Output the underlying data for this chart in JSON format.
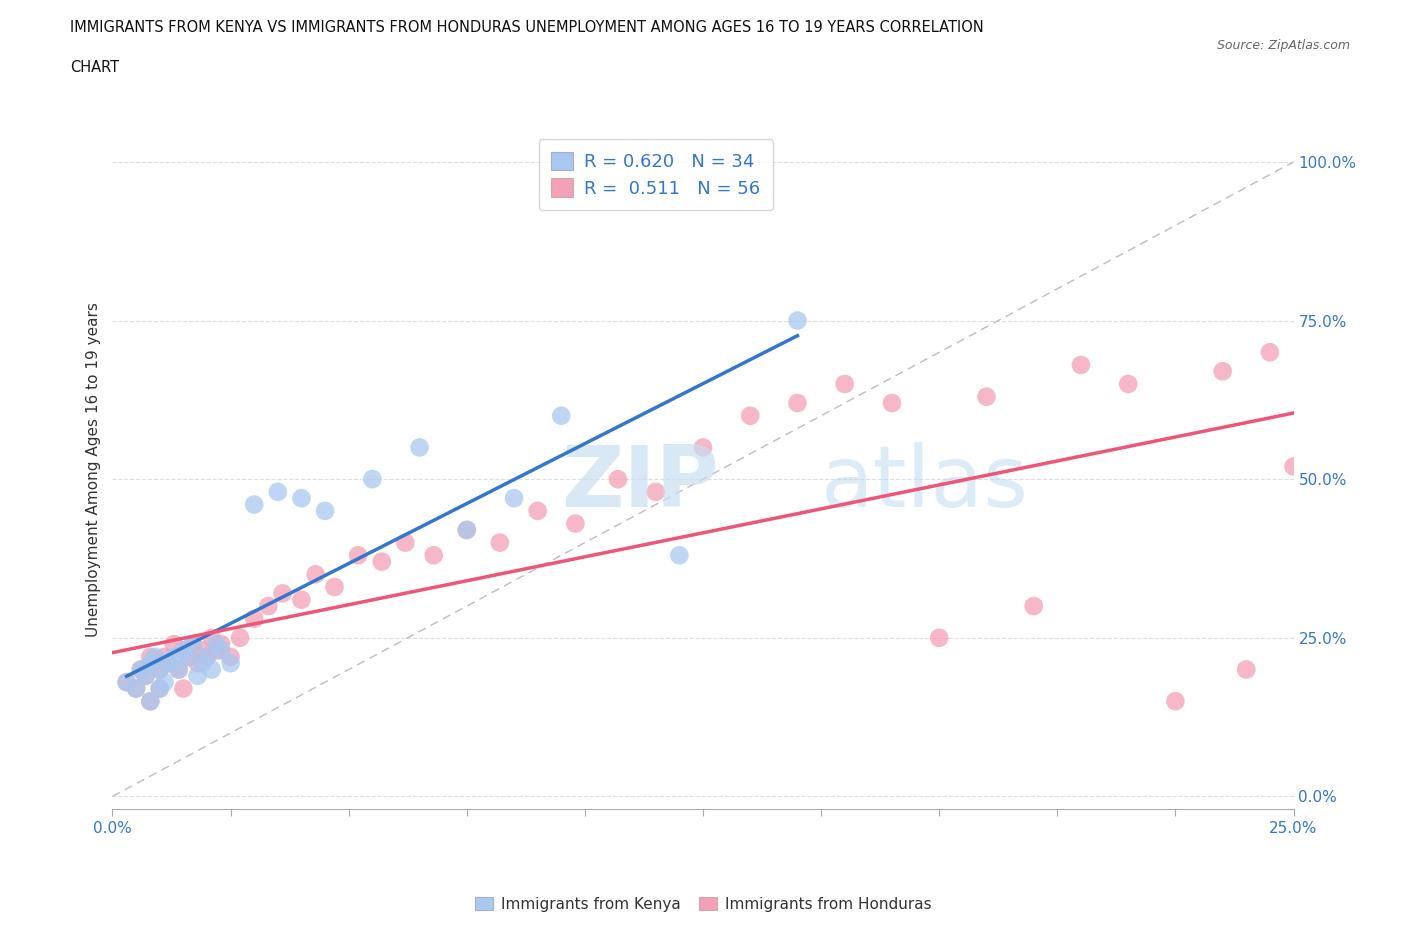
{
  "title_line1": "IMMIGRANTS FROM KENYA VS IMMIGRANTS FROM HONDURAS UNEMPLOYMENT AMONG AGES 16 TO 19 YEARS CORRELATION",
  "title_line2": "CHART",
  "source": "Source: ZipAtlas.com",
  "ylabel": "Unemployment Among Ages 16 to 19 years",
  "legend_xlabel": "Immigrants from Kenya",
  "legend_xlabel2": "Immigrants from Honduras",
  "xlim": [
    0.0,
    0.25
  ],
  "ylim": [
    -0.02,
    1.05
  ],
  "xtick_positions": [
    0.0,
    0.025,
    0.05,
    0.075,
    0.1,
    0.125,
    0.15,
    0.175,
    0.2,
    0.225,
    0.25
  ],
  "xtick_labels_show": {
    "0.0": "0.0%",
    "0.25": "25.0%"
  },
  "yticks_right": [
    0.0,
    0.25,
    0.5,
    0.75,
    1.0
  ],
  "kenya_color": "#a8c8f0",
  "honduras_color": "#f4a0b5",
  "kenya_line_color": "#3377cc",
  "honduras_line_color": "#ee5577",
  "kenya_R": 0.62,
  "kenya_N": 34,
  "honduras_R": 0.511,
  "honduras_N": 56,
  "watermark_zip": "ZIP",
  "watermark_atlas": "atlas",
  "kenya_x": [
    0.003,
    0.005,
    0.006,
    0.007,
    0.008,
    0.008,
    0.009,
    0.01,
    0.01,
    0.011,
    0.012,
    0.013,
    0.014,
    0.015,
    0.016,
    0.017,
    0.018,
    0.019,
    0.02,
    0.021,
    0.022,
    0.023,
    0.025,
    0.03,
    0.035,
    0.04,
    0.045,
    0.055,
    0.065,
    0.075,
    0.085,
    0.095,
    0.12,
    0.145
  ],
  "kenya_y": [
    0.18,
    0.17,
    0.2,
    0.19,
    0.21,
    0.15,
    0.22,
    0.2,
    0.17,
    0.18,
    0.21,
    0.22,
    0.2,
    0.23,
    0.22,
    0.24,
    0.19,
    0.21,
    0.22,
    0.2,
    0.24,
    0.23,
    0.21,
    0.46,
    0.48,
    0.47,
    0.45,
    0.5,
    0.55,
    0.42,
    0.47,
    0.6,
    0.38,
    0.75
  ],
  "honduras_x": [
    0.003,
    0.005,
    0.006,
    0.007,
    0.008,
    0.008,
    0.009,
    0.01,
    0.01,
    0.011,
    0.012,
    0.013,
    0.014,
    0.015,
    0.015,
    0.016,
    0.017,
    0.018,
    0.019,
    0.02,
    0.021,
    0.022,
    0.023,
    0.025,
    0.027,
    0.03,
    0.033,
    0.036,
    0.04,
    0.043,
    0.047,
    0.052,
    0.057,
    0.062,
    0.068,
    0.075,
    0.082,
    0.09,
    0.098,
    0.107,
    0.115,
    0.125,
    0.135,
    0.145,
    0.155,
    0.165,
    0.175,
    0.185,
    0.195,
    0.205,
    0.215,
    0.225,
    0.235,
    0.24,
    0.245,
    0.25
  ],
  "honduras_y": [
    0.18,
    0.17,
    0.2,
    0.19,
    0.22,
    0.15,
    0.21,
    0.2,
    0.17,
    0.22,
    0.21,
    0.24,
    0.2,
    0.23,
    0.17,
    0.22,
    0.24,
    0.21,
    0.23,
    0.22,
    0.25,
    0.23,
    0.24,
    0.22,
    0.25,
    0.28,
    0.3,
    0.32,
    0.31,
    0.35,
    0.33,
    0.38,
    0.37,
    0.4,
    0.38,
    0.42,
    0.4,
    0.45,
    0.43,
    0.5,
    0.48,
    0.55,
    0.6,
    0.62,
    0.65,
    0.62,
    0.25,
    0.63,
    0.3,
    0.68,
    0.65,
    0.15,
    0.67,
    0.2,
    0.7,
    0.52
  ]
}
